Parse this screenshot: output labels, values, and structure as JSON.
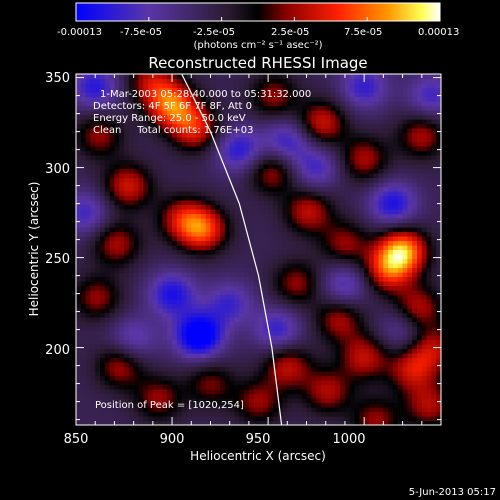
{
  "colorbar": {
    "tick_labels": [
      "-0.00013",
      "-7.5e-05",
      "-2.5e-05",
      "2.5e-05",
      "7.5e-05",
      "0.00013"
    ],
    "unit_label": "(photons cm⁻² s⁻¹ asec⁻²)"
  },
  "chart_data": {
    "type": "heatmap",
    "title": "Reconstructed RHESSI Image",
    "xlabel": "Heliocentric X (arcsec)",
    "ylabel": "Heliocentric Y (arcsec)",
    "xlim": [
      850,
      1040
    ],
    "ylim": [
      157,
      352
    ],
    "x_ticks": [
      850,
      900,
      950,
      1000
    ],
    "y_ticks": [
      200,
      250,
      300,
      350
    ],
    "colorscale": [
      "#0000ff",
      "#5a36a6",
      "#2a1a30",
      "#000000",
      "#8b0000",
      "#ff0000",
      "#ff8c00",
      "#ffff55",
      "#ffffff"
    ],
    "value_range": [
      -0.00013,
      0.00013
    ],
    "annotations": [
      "1-Mar-2003 05:28:40.000 to 05:31:32.000",
      "Detectors: 4F 5F 6F 7F 8F, Att 0",
      "Energy Range: 25.0 - 50.0 keV",
      "Clean     Total counts: 1.76E+03"
    ],
    "peak_text": "Position of Peak = [1020,254]",
    "peak_position": [
      1020,
      254
    ],
    "limb_curve": [
      [
        905,
        352
      ],
      [
        920,
        320
      ],
      [
        935,
        280
      ],
      [
        945,
        240
      ],
      [
        952,
        200
      ],
      [
        957,
        157
      ]
    ],
    "sources": [
      {
        "x": 1020,
        "y": 254,
        "amp": 1.0
      },
      {
        "x": 1012,
        "y": 243,
        "amp": 0.65
      },
      {
        "x": 1028,
        "y": 222,
        "amp": 0.55
      },
      {
        "x": 916,
        "y": 266,
        "amp": 0.78
      },
      {
        "x": 905,
        "y": 272,
        "amp": 0.5
      },
      {
        "x": 900,
        "y": 335,
        "amp": 0.85
      },
      {
        "x": 912,
        "y": 322,
        "amp": 0.65
      },
      {
        "x": 889,
        "y": 348,
        "amp": 0.5
      },
      {
        "x": 953,
        "y": 340,
        "amp": 0.45
      },
      {
        "x": 978,
        "y": 325,
        "amp": 0.6
      },
      {
        "x": 1000,
        "y": 305,
        "amp": 0.5
      },
      {
        "x": 1030,
        "y": 318,
        "amp": 0.5
      },
      {
        "x": 862,
        "y": 318,
        "amp": 0.45
      },
      {
        "x": 877,
        "y": 290,
        "amp": 0.6
      },
      {
        "x": 871,
        "y": 258,
        "amp": 0.5
      },
      {
        "x": 861,
        "y": 228,
        "amp": 0.45
      },
      {
        "x": 952,
        "y": 298,
        "amp": 0.5
      },
      {
        "x": 971,
        "y": 276,
        "amp": 0.55
      },
      {
        "x": 990,
        "y": 258,
        "amp": 0.45
      },
      {
        "x": 965,
        "y": 236,
        "amp": 0.45
      },
      {
        "x": 987,
        "y": 216,
        "amp": 0.5
      },
      {
        "x": 1000,
        "y": 195,
        "amp": 0.55
      },
      {
        "x": 1025,
        "y": 188,
        "amp": 0.55
      },
      {
        "x": 1036,
        "y": 200,
        "amp": 0.5
      },
      {
        "x": 981,
        "y": 176,
        "amp": 0.5
      },
      {
        "x": 960,
        "y": 190,
        "amp": 0.55
      },
      {
        "x": 945,
        "y": 170,
        "amp": 0.45
      },
      {
        "x": 873,
        "y": 190,
        "amp": 0.5
      },
      {
        "x": 893,
        "y": 172,
        "amp": 0.45
      },
      {
        "x": 920,
        "y": 180,
        "amp": 0.4
      },
      {
        "x": 1006,
        "y": 160,
        "amp": 0.45
      },
      {
        "x": 1034,
        "y": 168,
        "amp": 0.5
      },
      {
        "x": 914,
        "y": 207,
        "amp": -0.9
      },
      {
        "x": 900,
        "y": 230,
        "amp": -0.6
      },
      {
        "x": 930,
        "y": 225,
        "amp": -0.45
      },
      {
        "x": 935,
        "y": 310,
        "amp": -0.55
      },
      {
        "x": 960,
        "y": 315,
        "amp": -0.5
      },
      {
        "x": 1015,
        "y": 280,
        "amp": -0.6
      },
      {
        "x": 990,
        "y": 235,
        "amp": -0.45
      },
      {
        "x": 860,
        "y": 345,
        "amp": -0.55
      },
      {
        "x": 855,
        "y": 275,
        "amp": -0.45
      },
      {
        "x": 880,
        "y": 205,
        "amp": -0.4
      },
      {
        "x": 955,
        "y": 210,
        "amp": -0.5
      },
      {
        "x": 1035,
        "y": 340,
        "amp": -0.45
      },
      {
        "x": 1000,
        "y": 345,
        "amp": -0.5
      },
      {
        "x": 975,
        "y": 300,
        "amp": -0.45
      },
      {
        "x": 1020,
        "y": 210,
        "amp": -0.35
      }
    ]
  },
  "footer": {
    "date": "5-Jun-2013 05:17"
  }
}
